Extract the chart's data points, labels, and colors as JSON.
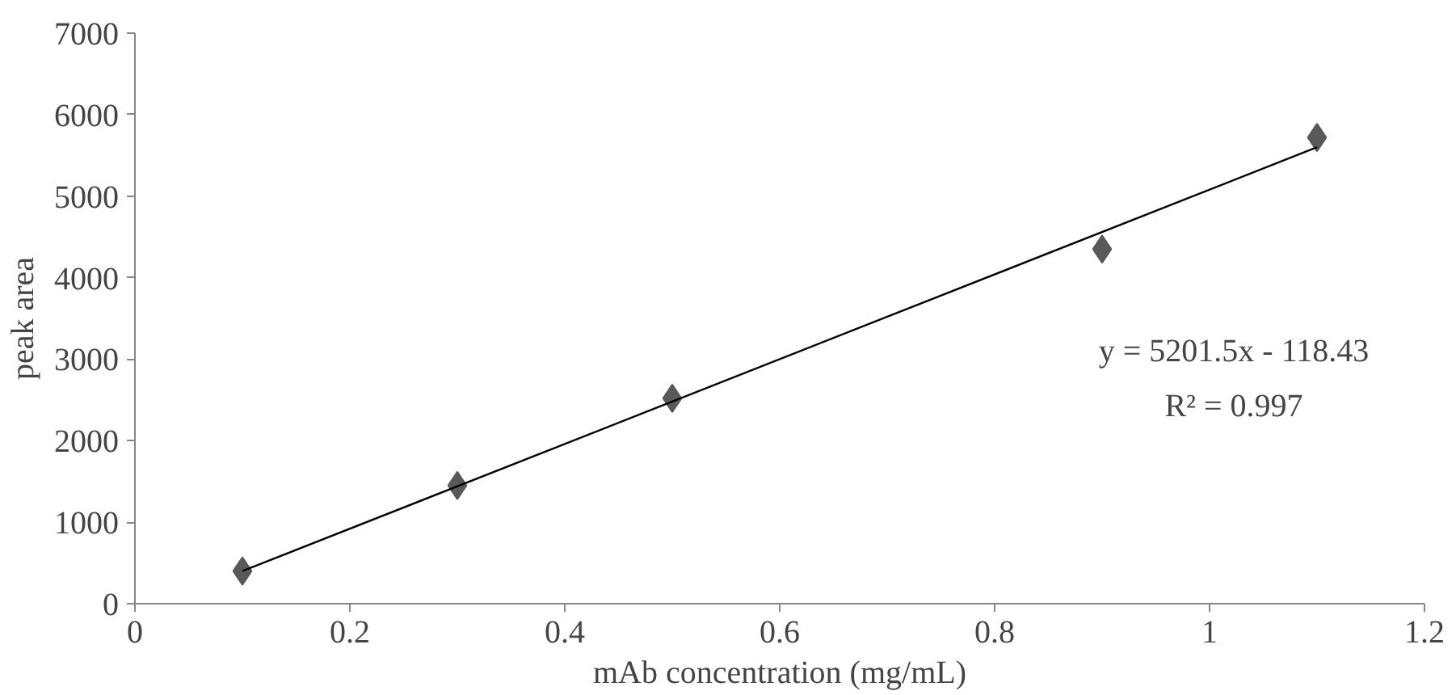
{
  "chart_data": {
    "type": "scatter",
    "xlabel": "mAb concentration (mg/mL)",
    "ylabel": "peak area",
    "x": [
      0.1,
      0.3,
      0.5,
      0.9,
      1.1
    ],
    "series": [
      {
        "color": "#595959",
        "marker": "diamond",
        "values": [
          400,
          1450,
          2520,
          4350,
          5720
        ]
      },
      {
        "type": "line",
        "color": "#000000",
        "x": [
          0.1,
          1.1
        ],
        "values": [
          400,
          5600
        ],
        "line_style": "solid"
      }
    ],
    "annotations": [
      "y = 5201.5x - 118.43",
      "R² = 0.997"
    ],
    "xlim": [
      0,
      1.2
    ],
    "xticks": [
      0,
      0.2,
      0.4,
      0.6,
      0.8,
      1,
      1.2
    ],
    "ylim": [
      0,
      7000
    ],
    "yticks": [
      0,
      1000,
      2000,
      3000,
      4000,
      5000,
      6000,
      7000
    ],
    "grid": false
  }
}
